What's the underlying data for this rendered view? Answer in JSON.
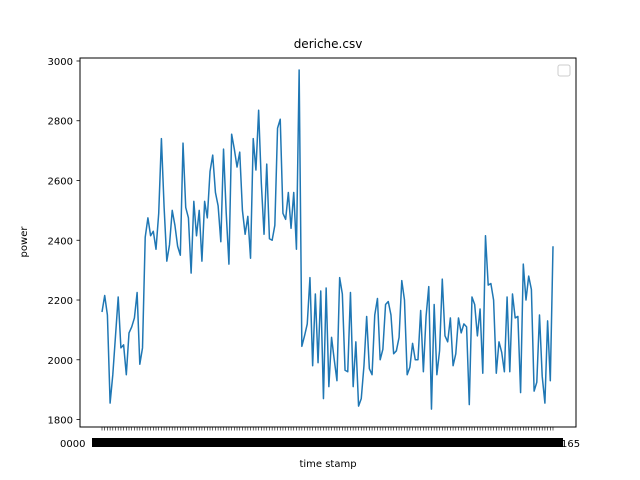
{
  "chart_data": {
    "type": "line",
    "title": "deriche.csv",
    "xlabel": "time stamp",
    "ylabel": "power",
    "ylim": [
      1775,
      3010
    ],
    "yticks": [
      1800,
      2000,
      2200,
      2400,
      2600,
      2800,
      3000
    ],
    "grid": false,
    "legend": {
      "placement": "top-right",
      "entries": []
    },
    "x_tick_labels_overlapping": true,
    "x_tick_labels_first": "0000",
    "x_tick_labels_last": "165",
    "colors": {
      "series": "#1f77b4",
      "axes": "#000000",
      "background": "#ffffff"
    },
    "series": [
      {
        "values": [
          2160,
          2215,
          2150,
          1855,
          1950,
          2080,
          2210,
          2040,
          2050,
          1950,
          2090,
          2110,
          2140,
          2225,
          1985,
          2040,
          2410,
          2475,
          2415,
          2430,
          2370,
          2490,
          2740,
          2510,
          2330,
          2385,
          2500,
          2450,
          2380,
          2350,
          2725,
          2510,
          2475,
          2290,
          2530,
          2415,
          2500,
          2330,
          2530,
          2475,
          2630,
          2685,
          2560,
          2515,
          2395,
          2705,
          2490,
          2320,
          2755,
          2705,
          2645,
          2695,
          2500,
          2420,
          2480,
          2340,
          2740,
          2635,
          2835,
          2590,
          2420,
          2655,
          2405,
          2400,
          2450,
          2775,
          2805,
          2490,
          2470,
          2560,
          2440,
          2560,
          2370,
          2970,
          2045,
          2080,
          2120,
          2275,
          1980,
          2220,
          1990,
          2230,
          1870,
          2240,
          1910,
          2075,
          2000,
          1930,
          2275,
          2220,
          1965,
          1960,
          2225,
          1910,
          2060,
          1845,
          1870,
          1980,
          2145,
          1970,
          1950,
          2150,
          2205,
          2000,
          2035,
          2185,
          2195,
          2150,
          2020,
          2030,
          2075,
          2265,
          2200,
          1950,
          1975,
          2055,
          2000,
          2000,
          2165,
          1960,
          2145,
          2245,
          1835,
          2185,
          1950,
          2030,
          2270,
          2080,
          2060,
          2140,
          1980,
          2020,
          2140,
          2090,
          2120,
          2110,
          1850,
          2210,
          2185,
          2080,
          2170,
          1955,
          2415,
          2250,
          2255,
          2200,
          1955,
          2060,
          2025,
          1960,
          2210,
          1960,
          2220,
          2140,
          2145,
          1890,
          2320,
          2200,
          2280,
          2235,
          1895,
          1925,
          2150,
          1945,
          1855,
          2130,
          1930,
          2380
        ]
      }
    ]
  }
}
